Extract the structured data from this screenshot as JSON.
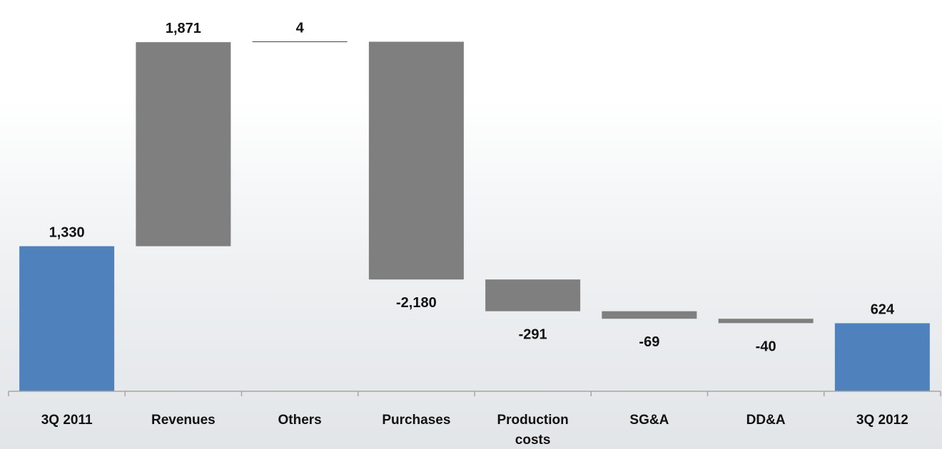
{
  "chart_data": {
    "type": "bar",
    "subtype": "waterfall",
    "categories": [
      "3Q 2011",
      "Revenues",
      "Others",
      "Purchases",
      "Production costs",
      "SG&A",
      "DD&A",
      "3Q 2012"
    ],
    "category_lines": [
      [
        "3Q 2011"
      ],
      [
        "Revenues"
      ],
      [
        "Others"
      ],
      [
        "Purchases"
      ],
      [
        "Production",
        "costs"
      ],
      [
        "SG&A"
      ],
      [
        "DD&A"
      ],
      [
        "3Q 2012"
      ]
    ],
    "values": [
      1330,
      1871,
      4,
      -2180,
      -291,
      -69,
      -40,
      624
    ],
    "data_labels": [
      "1,330",
      "1,871",
      "4",
      "-2,180",
      "-291",
      "-69",
      "-40",
      "624"
    ],
    "bar_kinds": [
      "total",
      "delta",
      "delta",
      "delta",
      "delta",
      "delta",
      "delta",
      "total"
    ],
    "title": "",
    "xlabel": "",
    "ylabel": "",
    "ylim": [
      0,
      3300
    ],
    "grid": false,
    "legend": "none",
    "colors": {
      "total": "#4f81bd",
      "delta": "#7f7f7f",
      "axis": "#a6a6a6"
    }
  }
}
